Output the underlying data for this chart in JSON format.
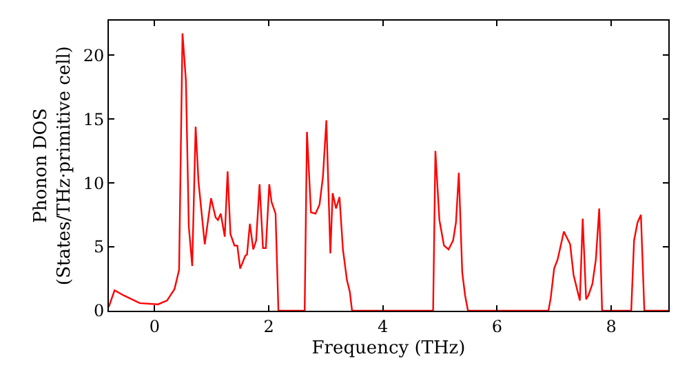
{
  "chart_data": {
    "type": "line",
    "xlabel": "Frequency (THz)",
    "ylabel": "Phonon DOS\n(States/THz·primitive cell)",
    "xlim": [
      -0.8,
      9.0
    ],
    "ylim": [
      0,
      22.7
    ],
    "xticks": [
      0,
      2,
      4,
      6,
      8
    ],
    "yticks": [
      0,
      5,
      10,
      15,
      20
    ],
    "marker": "none",
    "line_style": "solid",
    "series": [
      {
        "color": "#ff0000",
        "x": [
          -0.8,
          -0.77,
          -0.7,
          -0.54,
          -0.26,
          0.06,
          0.22,
          0.35,
          0.43,
          0.49,
          0.55,
          0.6,
          0.66,
          0.72,
          0.77,
          0.88,
          0.99,
          1.07,
          1.11,
          1.16,
          1.23,
          1.28,
          1.33,
          1.4,
          1.45,
          1.5,
          1.59,
          1.62,
          1.67,
          1.73,
          1.78,
          1.84,
          1.9,
          1.95,
          2.01,
          2.05,
          2.12,
          2.17,
          2.63,
          2.67,
          2.74,
          2.82,
          2.89,
          2.95,
          3.01,
          3.08,
          3.12,
          3.18,
          3.24,
          3.3,
          3.37,
          3.42,
          3.46,
          4.88,
          4.92,
          4.99,
          5.07,
          5.15,
          5.23,
          5.28,
          5.33,
          5.39,
          5.44,
          5.49,
          6.9,
          6.94,
          7.0,
          7.06,
          7.17,
          7.28,
          7.34,
          7.45,
          7.5,
          7.56,
          7.6,
          7.67,
          7.73,
          7.79,
          7.84,
          8.35,
          8.4,
          8.46,
          8.52,
          8.58,
          9.0
        ],
        "values": [
          0.3,
          0.7,
          1.6,
          1.2,
          0.6,
          0.5,
          0.8,
          1.7,
          3.2,
          21.7,
          18.0,
          6.6,
          3.5,
          14.4,
          10.1,
          5.2,
          8.8,
          7.3,
          7.1,
          7.6,
          5.8,
          10.9,
          6.0,
          5.1,
          5.1,
          3.3,
          4.3,
          4.4,
          6.8,
          4.8,
          5.5,
          9.9,
          4.9,
          4.9,
          9.9,
          8.5,
          7.6,
          0,
          0,
          14.0,
          7.7,
          7.6,
          8.3,
          10.5,
          14.9,
          4.5,
          9.2,
          8.0,
          8.9,
          4.8,
          2.4,
          1.5,
          0,
          0,
          12.5,
          7.1,
          5.1,
          4.8,
          5.5,
          6.9,
          10.8,
          3.0,
          1.2,
          0,
          0,
          1.0,
          3.3,
          4.0,
          6.2,
          5.2,
          2.8,
          0.8,
          7.2,
          0.9,
          1.2,
          2.1,
          4.0,
          8.0,
          0,
          0,
          5.5,
          6.9,
          7.5,
          0,
          0
        ]
      }
    ]
  }
}
